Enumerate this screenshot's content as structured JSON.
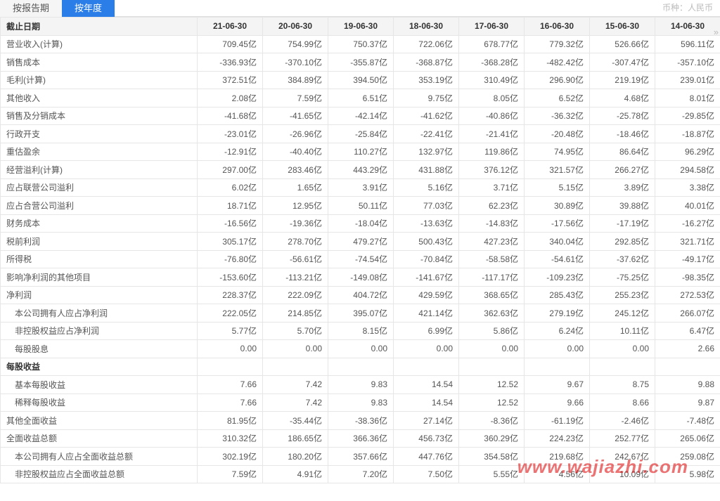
{
  "tabs": {
    "byReport": "按报告期",
    "byYear": "按年度"
  },
  "currency_note": "币种：人民币",
  "header_first": "截止日期",
  "columns": [
    "21-06-30",
    "20-06-30",
    "19-06-30",
    "18-06-30",
    "17-06-30",
    "16-06-30",
    "15-06-30",
    "14-06-30"
  ],
  "rows": [
    {
      "label": "营业收入(计算)",
      "indent": false,
      "values": [
        "709.45亿",
        "754.99亿",
        "750.37亿",
        "722.06亿",
        "678.77亿",
        "779.32亿",
        "526.66亿",
        "596.11亿"
      ]
    },
    {
      "label": "销售成本",
      "indent": false,
      "values": [
        "-336.93亿",
        "-370.10亿",
        "-355.87亿",
        "-368.87亿",
        "-368.28亿",
        "-482.42亿",
        "-307.47亿",
        "-357.10亿"
      ]
    },
    {
      "label": "毛利(计算)",
      "indent": false,
      "values": [
        "372.51亿",
        "384.89亿",
        "394.50亿",
        "353.19亿",
        "310.49亿",
        "296.90亿",
        "219.19亿",
        "239.01亿"
      ]
    },
    {
      "label": "其他收入",
      "indent": false,
      "values": [
        "2.08亿",
        "7.59亿",
        "6.51亿",
        "9.75亿",
        "8.05亿",
        "6.52亿",
        "4.68亿",
        "8.01亿"
      ]
    },
    {
      "label": "销售及分销成本",
      "indent": false,
      "values": [
        "-41.68亿",
        "-41.65亿",
        "-42.14亿",
        "-41.62亿",
        "-40.86亿",
        "-36.32亿",
        "-25.78亿",
        "-29.85亿"
      ]
    },
    {
      "label": "行政开支",
      "indent": false,
      "values": [
        "-23.01亿",
        "-26.96亿",
        "-25.84亿",
        "-22.41亿",
        "-21.41亿",
        "-20.48亿",
        "-18.46亿",
        "-18.87亿"
      ]
    },
    {
      "label": "重估盈余",
      "indent": false,
      "values": [
        "-12.91亿",
        "-40.40亿",
        "110.27亿",
        "132.97亿",
        "119.86亿",
        "74.95亿",
        "86.64亿",
        "96.29亿"
      ]
    },
    {
      "label": "经营溢利(计算)",
      "indent": false,
      "values": [
        "297.00亿",
        "283.46亿",
        "443.29亿",
        "431.88亿",
        "376.12亿",
        "321.57亿",
        "266.27亿",
        "294.58亿"
      ]
    },
    {
      "label": "应占联营公司溢利",
      "indent": false,
      "values": [
        "6.02亿",
        "1.65亿",
        "3.91亿",
        "5.16亿",
        "3.71亿",
        "5.15亿",
        "3.89亿",
        "3.38亿"
      ]
    },
    {
      "label": "应占合营公司溢利",
      "indent": false,
      "values": [
        "18.71亿",
        "12.95亿",
        "50.11亿",
        "77.03亿",
        "62.23亿",
        "30.89亿",
        "39.88亿",
        "40.01亿"
      ]
    },
    {
      "label": "财务成本",
      "indent": false,
      "values": [
        "-16.56亿",
        "-19.36亿",
        "-18.04亿",
        "-13.63亿",
        "-14.83亿",
        "-17.56亿",
        "-17.19亿",
        "-16.27亿"
      ]
    },
    {
      "label": "税前利润",
      "indent": false,
      "values": [
        "305.17亿",
        "278.70亿",
        "479.27亿",
        "500.43亿",
        "427.23亿",
        "340.04亿",
        "292.85亿",
        "321.71亿"
      ]
    },
    {
      "label": "所得税",
      "indent": false,
      "values": [
        "-76.80亿",
        "-56.61亿",
        "-74.54亿",
        "-70.84亿",
        "-58.58亿",
        "-54.61亿",
        "-37.62亿",
        "-49.17亿"
      ]
    },
    {
      "label": "影响净利润的其他项目",
      "indent": false,
      "values": [
        "-153.60亿",
        "-113.21亿",
        "-149.08亿",
        "-141.67亿",
        "-117.17亿",
        "-109.23亿",
        "-75.25亿",
        "-98.35亿"
      ]
    },
    {
      "label": "净利润",
      "indent": false,
      "values": [
        "228.37亿",
        "222.09亿",
        "404.72亿",
        "429.59亿",
        "368.65亿",
        "285.43亿",
        "255.23亿",
        "272.53亿"
      ]
    },
    {
      "label": "本公司拥有人应占净利润",
      "indent": true,
      "values": [
        "222.05亿",
        "214.85亿",
        "395.07亿",
        "421.14亿",
        "362.63亿",
        "279.19亿",
        "245.12亿",
        "266.07亿"
      ]
    },
    {
      "label": "非控股权益应占净利润",
      "indent": true,
      "values": [
        "5.77亿",
        "5.70亿",
        "8.15亿",
        "6.99亿",
        "5.86亿",
        "6.24亿",
        "10.11亿",
        "6.47亿"
      ]
    },
    {
      "label": "每股股息",
      "indent": true,
      "values": [
        "0.00",
        "0.00",
        "0.00",
        "0.00",
        "0.00",
        "0.00",
        "0.00",
        "2.66"
      ]
    },
    {
      "label": "每股收益",
      "indent": false,
      "section": true,
      "values": [
        "",
        "",
        "",
        "",
        "",
        "",
        "",
        ""
      ]
    },
    {
      "label": "基本每股收益",
      "indent": true,
      "values": [
        "7.66",
        "7.42",
        "9.83",
        "14.54",
        "12.52",
        "9.67",
        "8.75",
        "9.88"
      ]
    },
    {
      "label": "稀释每股收益",
      "indent": true,
      "values": [
        "7.66",
        "7.42",
        "9.83",
        "14.54",
        "12.52",
        "9.66",
        "8.66",
        "9.87"
      ]
    },
    {
      "label": "其他全面收益",
      "indent": false,
      "values": [
        "81.95亿",
        "-35.44亿",
        "-38.36亿",
        "27.14亿",
        "-8.36亿",
        "-61.19亿",
        "-2.46亿",
        "-7.48亿"
      ]
    },
    {
      "label": "全面收益总额",
      "indent": false,
      "values": [
        "310.32亿",
        "186.65亿",
        "366.36亿",
        "456.73亿",
        "360.29亿",
        "224.23亿",
        "252.77亿",
        "265.06亿"
      ]
    },
    {
      "label": "本公司拥有人应占全面收益总额",
      "indent": true,
      "values": [
        "302.19亿",
        "180.20亿",
        "357.66亿",
        "447.76亿",
        "354.58亿",
        "219.68亿",
        "242.67亿",
        "259.08亿"
      ]
    },
    {
      "label": "非控股权益应占全面收益总额",
      "indent": true,
      "values": [
        "7.59亿",
        "4.91亿",
        "7.20亿",
        "7.50亿",
        "5.55亿",
        "4.56亿",
        "10.09亿",
        "5.98亿"
      ]
    }
  ],
  "watermark": "www.wajiazhi.com",
  "scroll_next_glyph": "»"
}
